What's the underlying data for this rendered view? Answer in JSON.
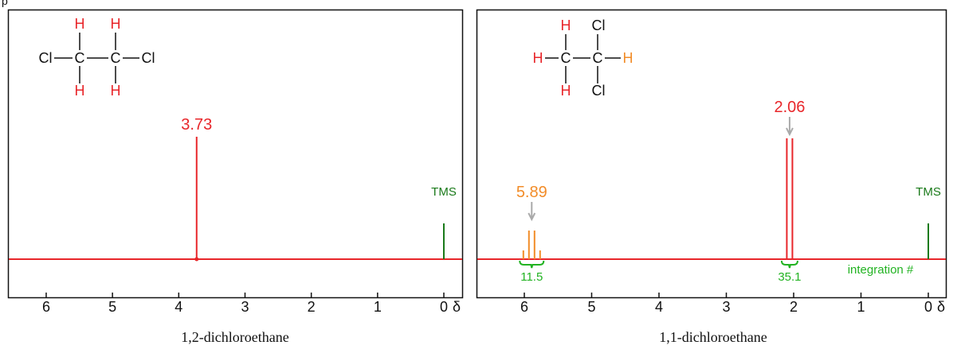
{
  "header": "p",
  "panels": [
    {
      "caption": "1,2-dichloroethane",
      "axis": {
        "ticks": [
          6,
          5,
          4,
          3,
          2,
          1,
          0
        ],
        "unit": "δ"
      },
      "molecule": {
        "atoms": [
          "H",
          "H",
          "Cl",
          "C",
          "C",
          "Cl",
          "H",
          "H"
        ]
      },
      "peaks": [
        {
          "label": "3.73",
          "color": "#e8262a"
        }
      ],
      "reference": "TMS"
    },
    {
      "caption": "1,1-dichloroethane",
      "axis": {
        "ticks": [
          6,
          5,
          4,
          3,
          2,
          1,
          0
        ],
        "unit": "δ"
      },
      "molecule": {
        "atoms": [
          "H",
          "Cl",
          "H",
          "C",
          "C",
          "H",
          "H",
          "Cl"
        ]
      },
      "peaks": [
        {
          "label": "5.89",
          "color": "#f28c28",
          "integration": "11.5"
        },
        {
          "label": "2.06",
          "color": "#e8262a",
          "integration": "35.1"
        }
      ],
      "integration_note": "integration #",
      "reference": "TMS"
    }
  ]
}
